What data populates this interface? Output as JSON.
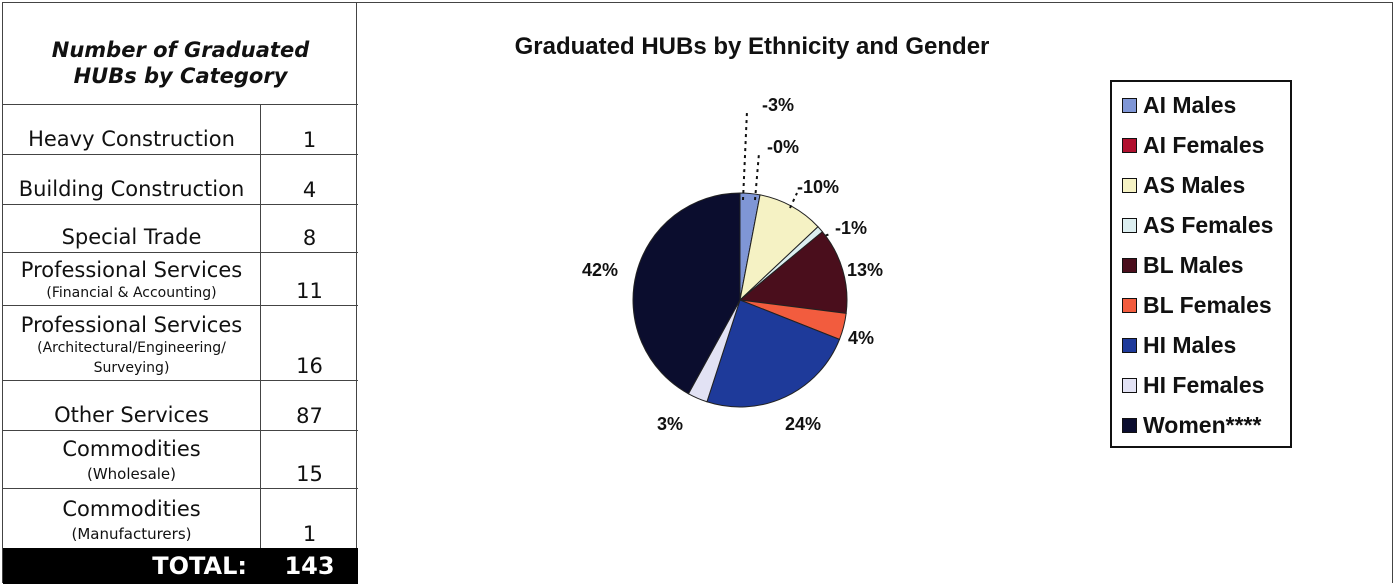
{
  "table": {
    "title_line1": "Number of Graduated",
    "title_line2": "HUBs by Category",
    "rows": [
      {
        "label": "Heavy Construction",
        "sub": "",
        "value": "1"
      },
      {
        "label": "Building Construction",
        "sub": "",
        "value": "4"
      },
      {
        "label": "Special Trade",
        "sub": "",
        "value": "8"
      },
      {
        "label": "Professional Services",
        "sub": "(Financial & Accounting)",
        "value": "11"
      },
      {
        "label": "Professional Services",
        "sub": "(Architectural/Engineering/ Surveying)",
        "value": "16"
      },
      {
        "label": "Other Services",
        "sub": "",
        "value": "87"
      },
      {
        "label": "Commodities",
        "sub": "(Wholesale)",
        "value": "15"
      },
      {
        "label": "Commodities",
        "sub": "(Manufacturers)",
        "value": "1"
      }
    ],
    "total_label": "TOTAL:",
    "total_value": "143"
  },
  "chart_data": {
    "type": "pie",
    "title": "Graduated HUBs by Ethnicity and Gender",
    "legend_position": "right",
    "series": [
      {
        "name": "AI Males",
        "value": 3,
        "label": "3%",
        "color": "#7F96D6"
      },
      {
        "name": "AI Females",
        "value": 0,
        "label": "0%",
        "color": "#B0102E"
      },
      {
        "name": "AS Males",
        "value": 10,
        "label": "10%",
        "color": "#F5F2C4"
      },
      {
        "name": "AS Females",
        "value": 1,
        "label": "1%",
        "color": "#DCEEF0"
      },
      {
        "name": "BL Males",
        "value": 13,
        "label": "13%",
        "color": "#4A0E1C"
      },
      {
        "name": "BL Females",
        "value": 4,
        "label": "4%",
        "color": "#F25C3E"
      },
      {
        "name": "HI Males",
        "value": 24,
        "label": "24%",
        "color": "#1E3A9A"
      },
      {
        "name": "HI Females",
        "value": 3,
        "label": "3%",
        "color": "#E2E2F4"
      },
      {
        "name": "Women****",
        "value": 42,
        "label": "42%",
        "color": "#0B0D2E"
      }
    ]
  }
}
